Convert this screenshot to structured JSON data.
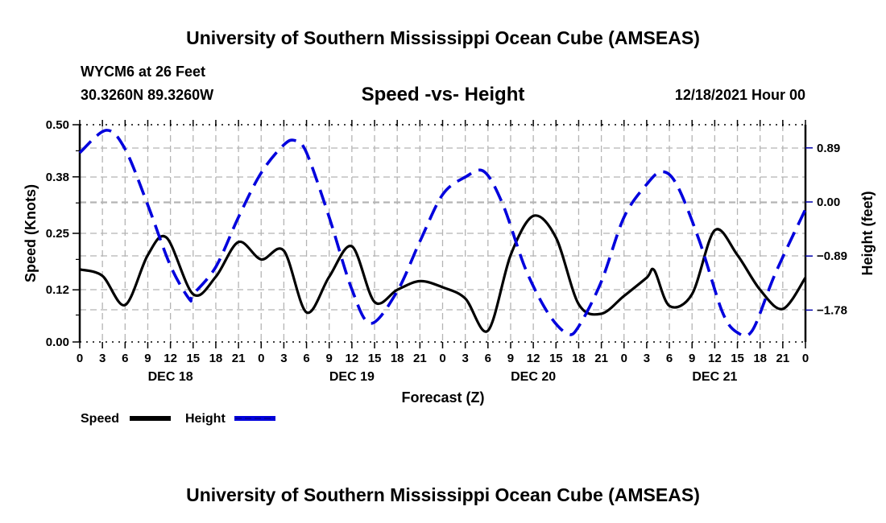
{
  "header": {
    "main_title": "University of Southern Mississippi Ocean Cube (AMSEAS)",
    "station_line": "WYCM6 at 26 Feet",
    "coords_line": "30.3260N  89.3260W",
    "chart_title": "Speed -vs- Height",
    "date_line": "12/18/2021 Hour 00"
  },
  "footer": {
    "main_title": "University of Southern Mississippi Ocean Cube (AMSEAS)"
  },
  "chart_data": {
    "type": "line",
    "title": "Speed -vs- Height",
    "xlabel": "Forecast (Z)",
    "ylabel": "Speed (Knots)",
    "y2label": "Height (feet)",
    "x_unit": "forecast hours from 12/18/2021 00Z",
    "xlim": [
      0,
      96
    ],
    "ylim": [
      0,
      0.5
    ],
    "y2_ticks_feet": [
      0.89,
      0.0,
      -0.89,
      -1.78
    ],
    "y2_tick_labels": [
      "0.89",
      "0.00",
      "−0.89",
      "−1.78"
    ],
    "y_ticks": [
      0.0,
      0.12,
      0.25,
      0.38,
      0.5
    ],
    "y_tick_labels": [
      "0.00",
      "0.12",
      "0.25",
      "0.38",
      "0.50"
    ],
    "x_tick_hours": [
      0,
      3,
      6,
      9,
      12,
      15,
      18,
      21,
      24,
      27,
      30,
      33,
      36,
      39,
      42,
      45,
      48,
      51,
      54,
      57,
      60,
      63,
      66,
      69,
      72,
      75,
      78,
      81,
      84,
      87,
      90,
      93,
      96
    ],
    "x_tick_labels": [
      "0",
      "3",
      "6",
      "9",
      "12",
      "15",
      "18",
      "21",
      "0",
      "3",
      "6",
      "9",
      "12",
      "15",
      "18",
      "21",
      "0",
      "3",
      "6",
      "9",
      "12",
      "15",
      "18",
      "21",
      "0",
      "3",
      "6",
      "9",
      "12",
      "15",
      "18",
      "21",
      "0"
    ],
    "day_labels": [
      {
        "label": "DEC 18",
        "hour": 12
      },
      {
        "label": "DEC 19",
        "hour": 36
      },
      {
        "label": "DEC 20",
        "hour": 60
      },
      {
        "label": "DEC 21",
        "hour": 84
      }
    ],
    "grid": true,
    "legend_position": "bottom-left",
    "series": [
      {
        "name": "Speed",
        "axis": "left",
        "color": "#000000",
        "style": "solid",
        "x": [
          0,
          3,
          6,
          9,
          11.5,
          15,
          18,
          21,
          24,
          27,
          30,
          33,
          36,
          39,
          42,
          45,
          48,
          51,
          54,
          57,
          60,
          63,
          66,
          69,
          72,
          75,
          76,
          78,
          81,
          84,
          87,
          90,
          93,
          96
        ],
        "values": [
          0.167,
          0.152,
          0.085,
          0.2,
          0.24,
          0.11,
          0.15,
          0.23,
          0.19,
          0.21,
          0.068,
          0.15,
          0.22,
          0.092,
          0.12,
          0.14,
          0.126,
          0.1,
          0.026,
          0.2,
          0.29,
          0.24,
          0.087,
          0.065,
          0.106,
          0.148,
          0.165,
          0.083,
          0.11,
          0.257,
          0.2,
          0.12,
          0.076,
          0.148
        ]
      },
      {
        "name": "Height",
        "axis": "right",
        "color": "#0000dd",
        "style": "dashed",
        "x": [
          0,
          3.5,
          6,
          9,
          12,
          14.5,
          15,
          18,
          21,
          24,
          27,
          28.5,
          30,
          33,
          36,
          38.5,
          42,
          45,
          48,
          51,
          53.5,
          56,
          59,
          62,
          64.5,
          66,
          69,
          72,
          75,
          77,
          79,
          82,
          85,
          87,
          89,
          92,
          96
        ],
        "values": [
          0.81,
          1.18,
          0.87,
          -0.05,
          -1.05,
          -1.6,
          -1.52,
          -1.07,
          -0.25,
          0.48,
          0.94,
          1.01,
          0.81,
          -0.25,
          -1.44,
          -2.0,
          -1.47,
          -0.65,
          0.12,
          0.41,
          0.5,
          -0.05,
          -1.11,
          -1.84,
          -2.17,
          -2.05,
          -1.31,
          -0.25,
          0.29,
          0.5,
          0.28,
          -0.65,
          -1.81,
          -2.15,
          -2.11,
          -1.18,
          -0.12
        ]
      }
    ]
  }
}
